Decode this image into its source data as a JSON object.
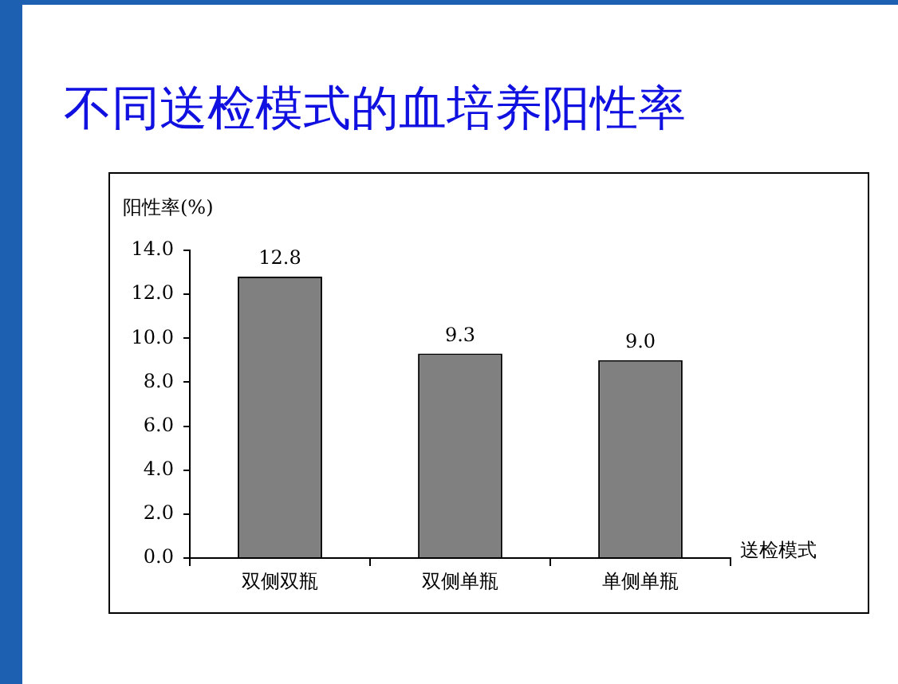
{
  "chart_data": {
    "type": "bar",
    "title": "不同送检模式的血培养阳性率",
    "ylabel": "阳性率(%)",
    "xlabel": "送检模式",
    "categories": [
      "双侧双瓶",
      "双侧单瓶",
      "单侧单瓶"
    ],
    "values": [
      12.8,
      9.3,
      9.0
    ],
    "value_labels": [
      "12.8",
      "9.3",
      "9.0"
    ],
    "color": "#808080",
    "grid": false,
    "legend": false,
    "ylim": [
      0,
      14
    ],
    "yticks": [
      {
        "value": 0,
        "label": "0.0"
      },
      {
        "value": 2,
        "label": "2.0"
      },
      {
        "value": 4,
        "label": "4.0"
      },
      {
        "value": 6,
        "label": "6.0"
      },
      {
        "value": 8,
        "label": "8.0"
      },
      {
        "value": 10,
        "label": "10.0"
      },
      {
        "value": 12,
        "label": "12.0"
      },
      {
        "value": 14,
        "label": "14.0"
      }
    ]
  }
}
